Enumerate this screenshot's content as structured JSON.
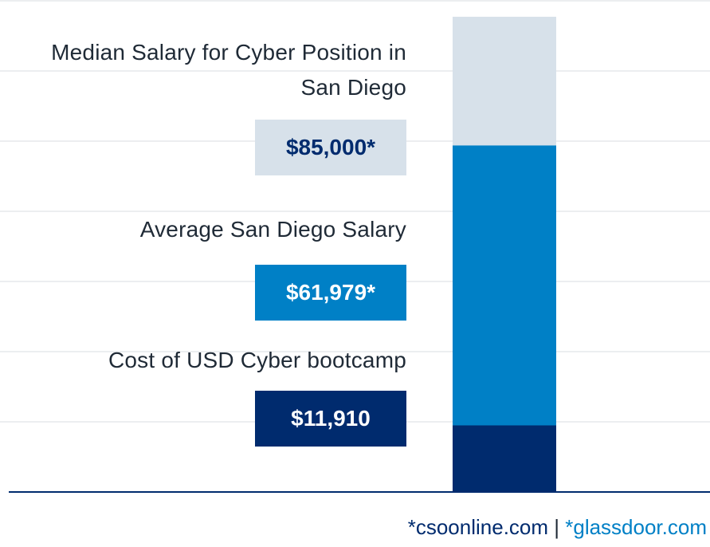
{
  "chart_data": {
    "type": "bar",
    "categories": [
      "Cost of USD Cyber bootcamp",
      "Average San Diego Salary",
      "Median Salary for Cyber Position in San Diego"
    ],
    "values": [
      11910,
      61979,
      85000
    ],
    "value_labels": [
      "$11,910",
      "$61,979*",
      "$85,000*"
    ],
    "colors": [
      "#002b6e",
      "#0080c6",
      "#d7e1ea"
    ],
    "ylim": [
      0,
      88000
    ],
    "grid": true,
    "stacked_overlay": true
  },
  "labels": {
    "median_line1": "Median Salary for Cyber Position in",
    "median_line2": "San Diego",
    "average": "Average San Diego Salary",
    "bootcamp": "Cost of USD Cyber bootcamp"
  },
  "value_boxes": {
    "median": "$85,000*",
    "average": "$61,979*",
    "bootcamp": "$11,910"
  },
  "box_colors": {
    "median_bg": "#d7e1ea",
    "median_text": "#002b6e",
    "average_bg": "#0080c6",
    "average_text": "#ffffff",
    "bootcamp_bg": "#002b6e",
    "bootcamp_text": "#ffffff"
  },
  "sources": {
    "source1": "*csoonline.com",
    "separator": " | ",
    "source2": "*glassdoor.com",
    "source1_color": "#002b6e",
    "source2_color": "#0080c6"
  }
}
